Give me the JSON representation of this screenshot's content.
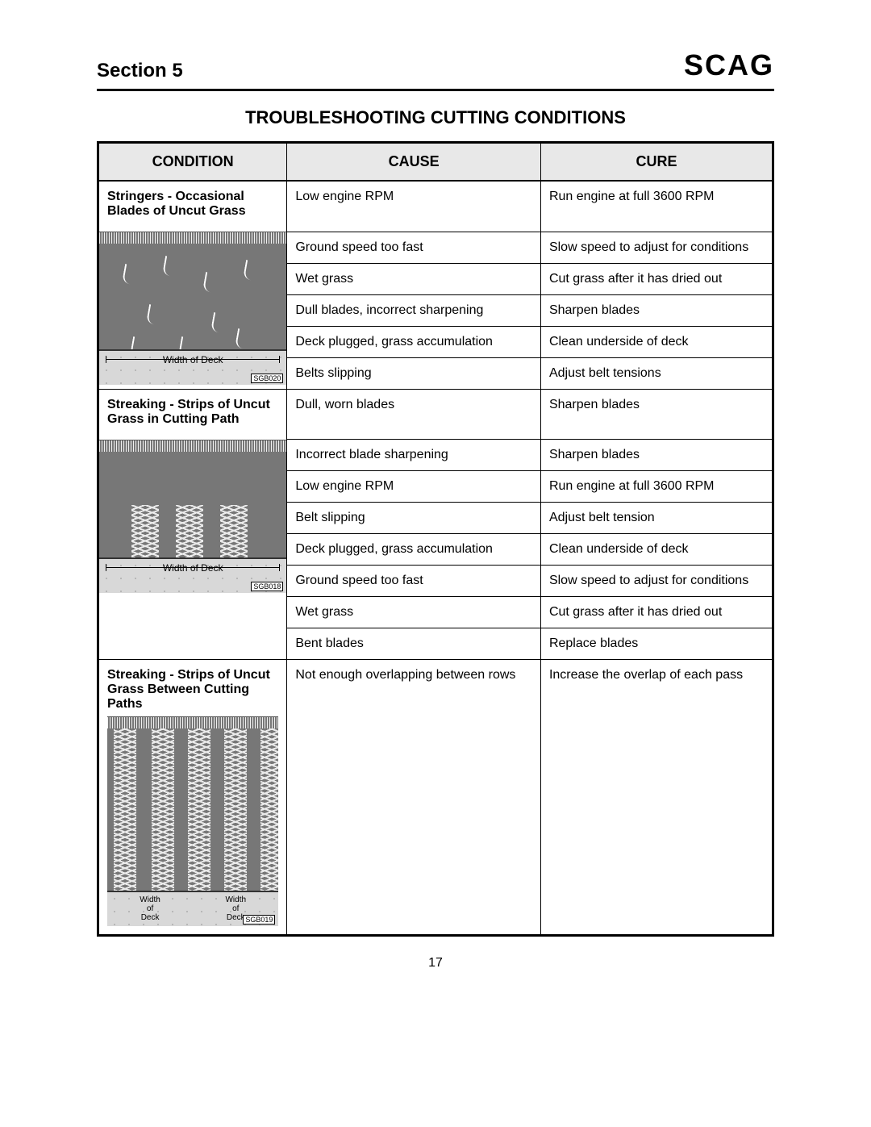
{
  "header": {
    "section_label": "Section 5",
    "brand": "SCAG"
  },
  "title": "TROUBLESHOOTING CUTTING CONDITIONS",
  "columns": [
    "CONDITION",
    "CAUSE",
    "CURE"
  ],
  "page_number": "17",
  "groups": [
    {
      "condition_title": "Stringers - Occasional Blades of Uncut Grass",
      "diagram": {
        "deck_label": "Width of Deck",
        "sgb": "SGB020",
        "type": "stringers"
      },
      "rows": [
        {
          "cause": "Low engine RPM",
          "cure": "Run engine at full 3600 RPM"
        },
        {
          "cause": "Ground speed too fast",
          "cure": "Slow speed to adjust for conditions"
        },
        {
          "cause": "Wet grass",
          "cure": "Cut grass after it has dried out"
        },
        {
          "cause": "Dull blades, incorrect sharpening",
          "cure": "Sharpen blades"
        },
        {
          "cause": "Deck plugged, grass accumulation",
          "cure": "Clean underside of deck"
        },
        {
          "cause": "Belts slipping",
          "cure": "Adjust belt tensions"
        }
      ]
    },
    {
      "condition_title": "Streaking - Strips of Uncut Grass in Cutting Path",
      "diagram": {
        "deck_label": "Width of Deck",
        "sgb": "SGB018",
        "type": "streaks_in_path"
      },
      "rows": [
        {
          "cause": "Dull, worn blades",
          "cure": "Sharpen blades"
        },
        {
          "cause": "Incorrect blade sharpening",
          "cure": "Sharpen blades"
        },
        {
          "cause": "Low engine RPM",
          "cure": "Run engine at full 3600 RPM"
        },
        {
          "cause": "Belt slipping",
          "cure": "Adjust belt tension"
        },
        {
          "cause": "Deck plugged, grass accumulation",
          "cure": "Clean underside of deck"
        },
        {
          "cause": "Ground speed too fast",
          "cure": "Slow speed to adjust for conditions"
        },
        {
          "cause": "Wet grass",
          "cure": "Cut grass after it has dried out"
        },
        {
          "cause": "Bent blades",
          "cure": "Replace blades"
        }
      ]
    },
    {
      "condition_title": "Streaking - Strips of Uncut Grass Between Cutting Paths",
      "diagram": {
        "deck_label_left": "Width of Deck",
        "deck_label_right": "Width of Deck",
        "sgb": "SGB019",
        "type": "streaks_between"
      },
      "rows": [
        {
          "cause": "Not enough overlapping between rows",
          "cure": "Increase the overlap of each pass"
        }
      ],
      "tall": true
    }
  ]
}
